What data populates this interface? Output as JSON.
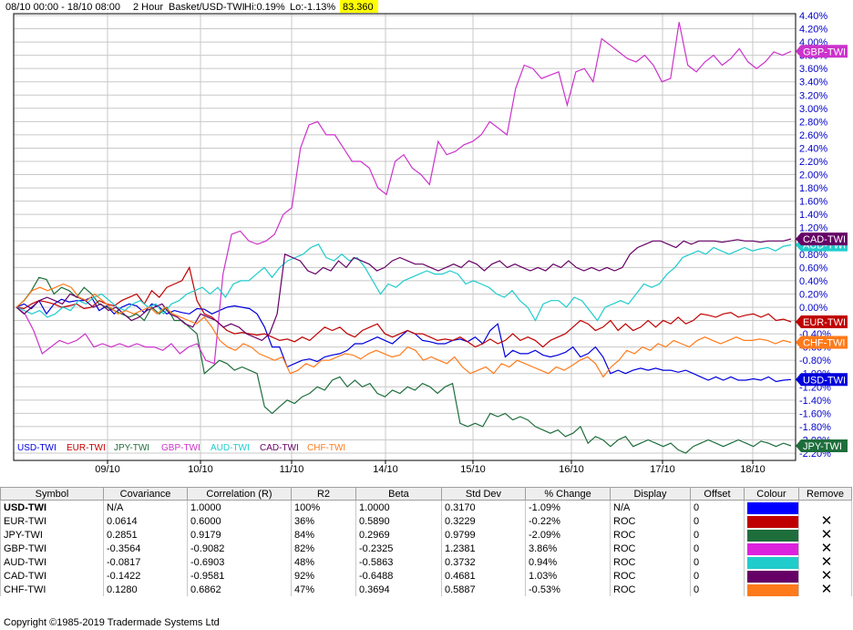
{
  "header": {
    "range": "08/10 00:00 - 18/10 08:00",
    "interval": "2 Hour",
    "basket": "Basket/USD-TWI",
    "hi": "Hi:0.19%",
    "lo": "Lo:-1.13%",
    "price": "83.360",
    "price_bg": "#ffff00"
  },
  "chart_data": {
    "type": "line",
    "title": "",
    "xlabel": "",
    "ylabel": "",
    "x_tick_labels": [
      "09/10",
      "10/10",
      "11/10",
      "14/10",
      "15/10",
      "16/10",
      "17/10",
      "18/10"
    ],
    "y_tick_labels": [
      "4.40%",
      "4.20%",
      "4.00%",
      "3.80%",
      "3.60%",
      "3.40%",
      "3.20%",
      "3.00%",
      "2.80%",
      "2.60%",
      "2.40%",
      "2.20%",
      "2.00%",
      "1.80%",
      "1.60%",
      "1.40%",
      "1.20%",
      "1.00%",
      "0.80%",
      "0.60%",
      "0.40%",
      "0.20%",
      "0.00%",
      "-0.20%",
      "-0.40%",
      "-0.60%",
      "-0.80%",
      "-1.00%",
      "-1.20%",
      "-1.40%",
      "-1.60%",
      "-1.80%",
      "-2.00%",
      "-2.20%"
    ],
    "ylim": [
      -2.2,
      4.4
    ],
    "grid": true,
    "legend_position": "bottom-left",
    "series": [
      {
        "name": "USD-TWI",
        "color": "#0000dd",
        "end_label": "USD-TWI",
        "label_bg": "#0000dd",
        "label_fg": "#ffffff",
        "values": [
          0,
          0.05,
          -0.02,
          0.1,
          -0.1,
          0.05,
          0.12,
          0.08,
          0.1,
          0.1,
          0.15,
          -0.05,
          0.02,
          -0.1,
          0,
          0.05,
          0.02,
          -0.08,
          0.05,
          0,
          -0.1,
          -0.05,
          -0.08,
          -0.1,
          -0.02,
          -0.03,
          -0.1,
          -0.05,
          0,
          0.02,
          0,
          -0.02,
          -0.1,
          -0.3,
          -0.6,
          -0.6,
          -0.9,
          -0.85,
          -0.8,
          -0.78,
          -0.82,
          -0.75,
          -0.72,
          -0.7,
          -0.65,
          -0.55,
          -0.55,
          -0.5,
          -0.45,
          -0.5,
          -0.55,
          -0.45,
          -0.35,
          -0.4,
          -0.5,
          -0.52,
          -0.55,
          -0.55,
          -0.5,
          -0.48,
          -0.52,
          -0.45,
          -0.55,
          -0.35,
          -0.25,
          -0.75,
          -0.65,
          -0.7,
          -0.7,
          -0.65,
          -0.72,
          -0.75,
          -0.72,
          -0.68,
          -0.6,
          -0.75,
          -0.7,
          -0.6,
          -0.75,
          -1,
          -0.95,
          -1,
          -0.95,
          -0.92,
          -0.95,
          -0.92,
          -0.95,
          -0.95,
          -0.98,
          -0.95,
          -1.0,
          -1.05,
          -1.1,
          -1.05,
          -1.1,
          -1.05,
          -1.1,
          -1.1,
          -1.08,
          -1.1,
          -1.05,
          -1.12,
          -1.1,
          -1.09
        ]
      },
      {
        "name": "EUR-TWI",
        "color": "#c00000",
        "end_label": "EUR-TWI",
        "label_bg": "#c00000",
        "label_fg": "#ffffff",
        "values": [
          0,
          -0.02,
          0.05,
          0.1,
          0.08,
          0.05,
          0,
          0.02,
          0.05,
          -0.02,
          0,
          0.1,
          0.05,
          0.02,
          0.1,
          0.15,
          0.2,
          0.05,
          0.25,
          0.15,
          0.3,
          0.35,
          0.4,
          0.6,
          0.1,
          -0.1,
          -0.15,
          -0.25,
          -0.35,
          -0.4,
          -0.38,
          -0.4,
          -0.42,
          -0.4,
          -0.45,
          -0.5,
          -0.48,
          -0.52,
          -0.45,
          -0.5,
          -0.4,
          -0.3,
          -0.35,
          -0.3,
          -0.4,
          -0.45,
          -0.35,
          -0.3,
          -0.25,
          -0.4,
          -0.45,
          -0.4,
          -0.35,
          -0.4,
          -0.4,
          -0.45,
          -0.5,
          -0.48,
          -0.5,
          -0.45,
          -0.52,
          -0.6,
          -0.55,
          -0.48,
          -0.55,
          -0.5,
          -0.4,
          -0.5,
          -0.45,
          -0.5,
          -0.6,
          -0.5,
          -0.45,
          -0.4,
          -0.3,
          -0.2,
          -0.25,
          -0.35,
          -0.3,
          -0.2,
          -0.35,
          -0.25,
          -0.35,
          -0.3,
          -0.2,
          -0.3,
          -0.2,
          -0.25,
          -0.15,
          -0.25,
          -0.2,
          -0.1,
          -0.12,
          -0.15,
          -0.1,
          -0.08,
          -0.15,
          -0.12,
          -0.1,
          -0.15,
          -0.1,
          -0.2,
          -0.18,
          -0.22
        ]
      },
      {
        "name": "JPY-TWI",
        "color": "#1e6e3c",
        "end_label": "JPY-TWI",
        "label_bg": "#1e6e3c",
        "label_fg": "#ffffff",
        "values": [
          0,
          0.1,
          0.25,
          0.45,
          0.42,
          0.2,
          0.3,
          0.25,
          0.15,
          0.3,
          0.2,
          0.05,
          0,
          -0.05,
          -0.1,
          -0.15,
          -0.1,
          -0.2,
          0,
          -0.1,
          0,
          -0.2,
          -0.2,
          -0.3,
          -0.4,
          -1.0,
          -0.9,
          -0.8,
          -0.85,
          -0.95,
          -0.9,
          -0.95,
          -1.0,
          -1.5,
          -1.6,
          -1.5,
          -1.4,
          -1.45,
          -1.35,
          -1.3,
          -1.2,
          -1.25,
          -1.1,
          -1.05,
          -1.2,
          -1.1,
          -1.2,
          -1.15,
          -1.3,
          -1.35,
          -1.25,
          -1.3,
          -1.2,
          -1.25,
          -1.15,
          -1.2,
          -1.3,
          -1.2,
          -1.15,
          -1.75,
          -1.8,
          -1.75,
          -1.8,
          -1.6,
          -1.65,
          -1.6,
          -1.7,
          -1.65,
          -1.7,
          -1.8,
          -1.85,
          -1.9,
          -1.85,
          -1.95,
          -1.9,
          -1.8,
          -2.05,
          -1.95,
          -2.0,
          -2.1,
          -2.0,
          -1.95,
          -2.1,
          -2.05,
          -2.0,
          -2.05,
          -2.1,
          -2.05,
          -2.15,
          -2.2,
          -2.1,
          -2.05,
          -2.0,
          -2.05,
          -2.1,
          -2.05,
          -2.0,
          -2.05,
          -2.1,
          -2.02,
          -2.05,
          -2.1,
          -2.05,
          -2.09
        ]
      },
      {
        "name": "GBP-TWI",
        "color": "#cc33cc",
        "end_label": "GBP-TWI",
        "label_bg": "#cc33cc",
        "label_fg": "#ffffff",
        "values": [
          0,
          -0.1,
          -0.35,
          -0.7,
          -0.6,
          -0.5,
          -0.55,
          -0.5,
          -0.4,
          -0.6,
          -0.55,
          -0.6,
          -0.55,
          -0.6,
          -0.55,
          -0.6,
          -0.6,
          -0.65,
          -0.55,
          -0.7,
          -0.6,
          -0.55,
          -0.8,
          -0.85,
          0.5,
          1.1,
          1.15,
          1.0,
          0.95,
          1.0,
          1.1,
          1.4,
          1.5,
          2.4,
          2.75,
          2.8,
          2.6,
          2.6,
          2.4,
          2.2,
          2.2,
          2.1,
          1.8,
          1.7,
          2.2,
          2.3,
          2.1,
          2.0,
          1.85,
          2.5,
          2.3,
          2.35,
          2.45,
          2.5,
          2.6,
          2.8,
          2.7,
          2.6,
          3.3,
          3.65,
          3.6,
          3.45,
          3.5,
          3.55,
          3.05,
          3.55,
          3.6,
          3.4,
          4.05,
          3.95,
          3.85,
          3.75,
          3.7,
          3.8,
          3.65,
          3.4,
          3.45,
          4.3,
          3.65,
          3.55,
          3.7,
          3.8,
          3.65,
          3.75,
          3.9,
          3.7,
          3.6,
          3.7,
          3.85,
          3.8,
          3.86
        ]
      },
      {
        "name": "AUD-TWI",
        "color": "#20cccc",
        "end_label": "AUD-TWI",
        "label_bg": "#20cccc",
        "label_fg": "#ffffff",
        "values": [
          0,
          -0.05,
          -0.1,
          -0.05,
          -0.15,
          -0.1,
          0,
          -0.05,
          0.1,
          0.05,
          0.15,
          0.2,
          0.1,
          0,
          -0.05,
          0.05,
          0.1,
          0,
          0.05,
          -0.1,
          0.05,
          0.1,
          0.2,
          0.25,
          0.3,
          0.2,
          0.3,
          0.15,
          0.35,
          0.4,
          0.4,
          0.5,
          0.6,
          0.45,
          0.6,
          0.7,
          0.75,
          0.8,
          0.9,
          0.95,
          0.75,
          0.7,
          0.8,
          0.7,
          0.75,
          0.6,
          0.4,
          0.2,
          0.35,
          0.3,
          0.4,
          0.45,
          0.5,
          0.55,
          0.5,
          0.5,
          0.55,
          0.5,
          0.35,
          0.4,
          0.35,
          0.3,
          0.2,
          0.15,
          0.25,
          0.1,
          0,
          -0.2,
          0.05,
          0.1,
          0.1,
          0,
          0.15,
          0.1,
          -0.05,
          -0.2,
          0,
          0.05,
          0.1,
          0.05,
          0.2,
          0.35,
          0.3,
          0.35,
          0.5,
          0.6,
          0.75,
          0.8,
          0.85,
          0.8,
          0.9,
          0.85,
          0.8,
          0.85,
          0.9,
          0.85,
          0.88,
          0.9,
          0.85,
          0.92,
          0.94
        ]
      },
      {
        "name": "CAD-TWI",
        "color": "#660066",
        "end_label": "CAD-TWI",
        "label_bg": "#660066",
        "label_fg": "#ffffff",
        "values": [
          0,
          -0.1,
          0,
          0.1,
          0.15,
          0.1,
          0.05,
          0.2,
          0.15,
          0.1,
          0,
          0.05,
          -0.05,
          0,
          -0.1,
          -0.2,
          -0.15,
          -0.05,
          0,
          0.05,
          -0.1,
          -0.15,
          -0.25,
          -0.3,
          -0.1,
          -0.15,
          -0.2,
          -0.3,
          -0.25,
          -0.3,
          -0.4,
          -0.45,
          -0.5,
          -0.4,
          -0.1,
          0.8,
          0.75,
          0.7,
          0.55,
          0.5,
          0.6,
          0.55,
          0.7,
          0.6,
          0.75,
          0.7,
          0.65,
          0.55,
          0.6,
          0.7,
          0.75,
          0.7,
          0.65,
          0.65,
          0.6,
          0.55,
          0.6,
          0.65,
          0.6,
          0.7,
          0.65,
          0.55,
          0.65,
          0.7,
          0.6,
          0.65,
          0.6,
          0.55,
          0.6,
          0.55,
          0.65,
          0.6,
          0.7,
          0.6,
          0.55,
          0.6,
          0.55,
          0.6,
          0.55,
          0.6,
          0.8,
          0.9,
          0.95,
          1.0,
          1.0,
          0.95,
          0.9,
          1.0,
          0.95,
          1.0,
          1.0,
          1.0,
          0.98,
          1.0,
          1.02,
          1.0,
          1.0,
          0.98,
          1.0,
          1.0,
          1.0,
          1.03
        ]
      },
      {
        "name": "CHF-TWI",
        "color": "#ff7a1a",
        "end_label": "CHF-TWI",
        "label_bg": "#ff7a1a",
        "label_fg": "#ffffff",
        "values": [
          0,
          0.1,
          0.25,
          0.3,
          0.25,
          0.3,
          0.35,
          0.3,
          0.15,
          0.1,
          0.2,
          0.1,
          0,
          -0.1,
          -0.05,
          -0.1,
          -0.05,
          0,
          -0.1,
          0,
          -0.1,
          -0.15,
          -0.2,
          -0.25,
          -0.15,
          -0.3,
          -0.5,
          -0.6,
          -0.65,
          -0.55,
          -0.6,
          -0.7,
          -0.75,
          -0.8,
          -0.75,
          -1.0,
          -0.95,
          -0.85,
          -0.9,
          -0.8,
          -0.8,
          -0.75,
          -0.7,
          -0.72,
          -0.78,
          -0.7,
          -0.65,
          -0.7,
          -0.75,
          -0.72,
          -0.6,
          -0.65,
          -0.8,
          -0.75,
          -0.8,
          -0.85,
          -0.75,
          -0.9,
          -1.0,
          -0.95,
          -0.9,
          -1.0,
          -0.85,
          -0.9,
          -0.8,
          -0.85,
          -0.9,
          -0.95,
          -1.0,
          -0.9,
          -0.95,
          -0.88,
          -0.8,
          -0.75,
          -0.85,
          -1.05,
          -0.9,
          -0.8,
          -0.65,
          -0.7,
          -0.6,
          -0.65,
          -0.55,
          -0.6,
          -0.5,
          -0.55,
          -0.6,
          -0.5,
          -0.45,
          -0.5,
          -0.55,
          -0.5,
          -0.45,
          -0.5,
          -0.5,
          -0.48,
          -0.5,
          -0.55,
          -0.5,
          -0.53
        ]
      }
    ]
  },
  "table": {
    "headers": [
      "Symbol",
      "Covariance",
      "Correlation (R)",
      "R2",
      "Beta",
      "Std Dev",
      "% Change",
      "Display",
      "Offset",
      "Colour",
      "Remove"
    ],
    "rows": [
      {
        "symbol": "USD-TWI",
        "covariance": "N/A",
        "correlation": "1.0000",
        "r2": "100%",
        "beta": "1.0000",
        "stddev": "0.3170",
        "change": "-1.09%",
        "display": "N/A",
        "offset": "0",
        "colour": "#0000ff",
        "remove": ""
      },
      {
        "symbol": "EUR-TWI",
        "covariance": "0.0614",
        "correlation": "0.6000",
        "r2": "36%",
        "beta": "0.5890",
        "stddev": "0.3229",
        "change": "-0.22%",
        "display": "ROC",
        "offset": "0",
        "colour": "#c00000",
        "remove": "✕"
      },
      {
        "symbol": "JPY-TWI",
        "covariance": "0.2851",
        "correlation": "0.9179",
        "r2": "84%",
        "beta": "0.2969",
        "stddev": "0.9799",
        "change": "-2.09%",
        "display": "ROC",
        "offset": "0",
        "colour": "#1e6e3c",
        "remove": "✕"
      },
      {
        "symbol": "GBP-TWI",
        "covariance": "-0.3564",
        "correlation": "-0.9082",
        "r2": "82%",
        "beta": "-0.2325",
        "stddev": "1.2381",
        "change": "3.86%",
        "display": "ROC",
        "offset": "0",
        "colour": "#dd22dd",
        "remove": "✕"
      },
      {
        "symbol": "AUD-TWI",
        "covariance": "-0.0817",
        "correlation": "-0.6903",
        "r2": "48%",
        "beta": "-0.5863",
        "stddev": "0.3732",
        "change": "0.94%",
        "display": "ROC",
        "offset": "0",
        "colour": "#20cccc",
        "remove": "✕"
      },
      {
        "symbol": "CAD-TWI",
        "covariance": "-0.1422",
        "correlation": "-0.9581",
        "r2": "92%",
        "beta": "-0.6488",
        "stddev": "0.4681",
        "change": "1.03%",
        "display": "ROC",
        "offset": "0",
        "colour": "#660066",
        "remove": "✕"
      },
      {
        "symbol": "CHF-TWI",
        "covariance": "0.1280",
        "correlation": "0.6862",
        "r2": "47%",
        "beta": "0.3694",
        "stddev": "0.5887",
        "change": "-0.53%",
        "display": "ROC",
        "offset": "0",
        "colour": "#ff7a1a",
        "remove": "✕"
      }
    ]
  },
  "footer": {
    "copyright": "Copyright ©1985-2019 Tradermade Systems Ltd"
  }
}
